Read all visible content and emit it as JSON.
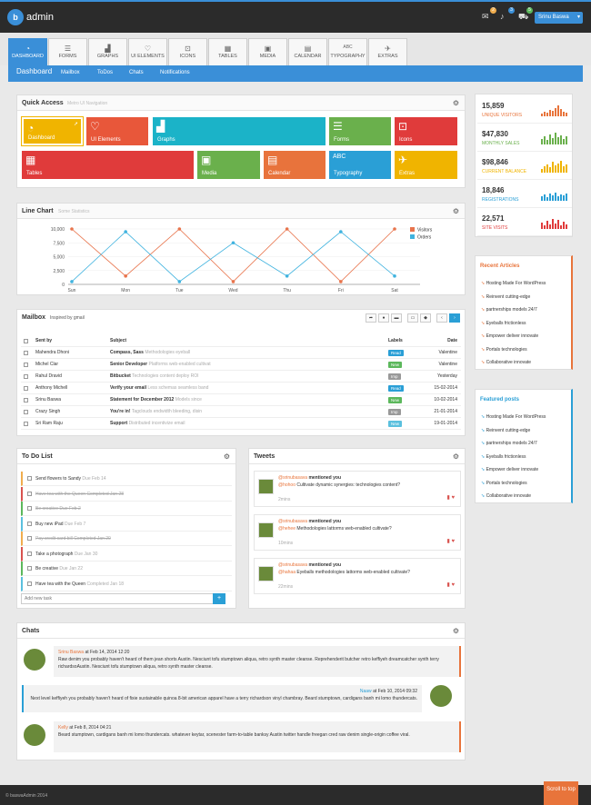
{
  "header": {
    "app_name": "admin",
    "user_name": "Srinu Baswa",
    "badges": [
      "2",
      "3",
      "5"
    ]
  },
  "nav_tabs": [
    {
      "label": "DASHBOARD",
      "icon": "dashboard-icon"
    },
    {
      "label": "FORMS",
      "icon": "forms-icon"
    },
    {
      "label": "GRAPHS",
      "icon": "graphs-icon"
    },
    {
      "label": "UI ELEMENTS",
      "icon": "ui-elements-icon"
    },
    {
      "label": "ICONS",
      "icon": "icons-icon"
    },
    {
      "label": "TABLES",
      "icon": "tables-icon"
    },
    {
      "label": "MEDIA",
      "icon": "media-icon"
    },
    {
      "label": "CALENDAR",
      "icon": "calendar-icon"
    },
    {
      "label": "TYPOGRAPHY",
      "icon": "typography-icon"
    },
    {
      "label": "EXTRAS",
      "icon": "extras-icon"
    }
  ],
  "subnav": {
    "current": "Dashboard",
    "links": [
      "Mailbox",
      "ToDos",
      "Chats",
      "Notifications"
    ]
  },
  "quick_access": {
    "title": "Quick Access",
    "subtitle": "Metro UI Navigation",
    "tiles": [
      "Dashboard",
      "UI Elements",
      "Graphs",
      "Forms",
      "Icons",
      "Tables",
      "Media",
      "Calendar",
      "Typography",
      "Extras"
    ]
  },
  "stats": [
    {
      "value": "15,859",
      "label": "UNIQUE VISITORS",
      "color": "#e8743b"
    },
    {
      "value": "$47,830",
      "label": "MONTHLY SALES",
      "color": "#6ab04c"
    },
    {
      "value": "$98,846",
      "label": "CURRENT BALANCE",
      "color": "#f0b400"
    },
    {
      "value": "18,846",
      "label": "REGISTRATIONS",
      "color": "#2a9fd6"
    },
    {
      "value": "22,571",
      "label": "SITE VISITS",
      "color": "#e03b3b"
    }
  ],
  "chart_data": {
    "type": "line",
    "title": "Line Chart",
    "subtitle": "Some Statistics",
    "categories": [
      "Sun",
      "Mon",
      "Tue",
      "Wed",
      "Thu",
      "Fri",
      "Sat"
    ],
    "series": [
      {
        "name": "Visitors",
        "color": "#e8744c",
        "values": [
          10000,
          1500,
          10000,
          500,
          10000,
          500,
          10000
        ]
      },
      {
        "name": "Orders",
        "color": "#40b3df",
        "values": [
          500,
          9500,
          500,
          7500,
          1500,
          9500,
          1500
        ]
      }
    ],
    "ylim": [
      0,
      10000
    ],
    "yticks": [
      "10,000",
      "7,500",
      "5,000",
      "2,500",
      "0"
    ]
  },
  "recent_articles": {
    "title": "Recent Articles",
    "items": [
      "Hosting Made For WordPress",
      "Reinvent cutting-edge",
      "partnerships models 24/7",
      "Eyeballs frictionless",
      "Empower deliver innovate",
      "Portals technologies",
      "Collaborative innovate"
    ]
  },
  "featured_posts": {
    "title": "Featured posts",
    "items": [
      "Hosting Made For WordPress",
      "Reinvent cutting-edge",
      "partnerships models 24/7",
      "Eyeballs frictionless",
      "Empower deliver innovate",
      "Portals technologies",
      "Collaborative innovate"
    ]
  },
  "mailbox": {
    "title": "Mailbox",
    "subtitle": "Inspired by gmail",
    "headers": {
      "sent_by": "Sent by",
      "subject": "Subject",
      "labels": "Labels",
      "date": "Date"
    },
    "rows": [
      {
        "from": "Mahendra Dhoni",
        "subject": "Compass, Sass",
        "preview": "Methodologies eyeball",
        "label": "Read",
        "label_color": "#2a9fd6",
        "date": "Valentine"
      },
      {
        "from": "Michel Clar",
        "subject": "Senior Developer",
        "preview": "Platforms web-enabled cultivat",
        "label": "New",
        "label_color": "#5cb85c",
        "date": "Valentine"
      },
      {
        "from": "Rahul Dravid",
        "subject": "Bitbucket",
        "preview": "Technologies content deploy ROI",
        "label": "Imp",
        "label_color": "#999999",
        "date": "Yesterday"
      },
      {
        "from": "Anthony Michell",
        "subject": "Verify your email",
        "preview": "Less schemas seamless band",
        "label": "Read",
        "label_color": "#2a9fd6",
        "date": "15-02-2014"
      },
      {
        "from": "Srinu Baswa",
        "subject": "Statement for December 2012",
        "preview": "Models since",
        "label": "New",
        "label_color": "#5cb85c",
        "date": "10-02-2014"
      },
      {
        "from": "Crazy Singh",
        "subject": "You're in!",
        "preview": "Tagclouds endwidth bleeding, disin",
        "label": "Imp",
        "label_color": "#999999",
        "date": "21-01-2014"
      },
      {
        "from": "Sri Ram Raju",
        "subject": "Support",
        "preview": "Distributed incentivize email",
        "label": "New",
        "label_color": "#5bc0de",
        "date": "19-01-2014"
      }
    ]
  },
  "todo": {
    "title": "To Do List",
    "placeholder": "Add new task",
    "items": [
      {
        "text": "Send flowers to Sandy",
        "meta": "Due Feb 14",
        "done": false,
        "color": "#f0ad4e"
      },
      {
        "text": "Have tea with the Queen",
        "meta": "Completed Jan 28",
        "done": true,
        "color": "#d9534f"
      },
      {
        "text": "Be creative",
        "meta": "Due Feb 2",
        "done": true,
        "color": "#5cb85c"
      },
      {
        "text": "Buy new iPad",
        "meta": "Due Feb 7",
        "done": false,
        "color": "#5bc0de"
      },
      {
        "text": "Pay credit card bill",
        "meta": "Completed Jan 20",
        "done": true,
        "color": "#f0ad4e"
      },
      {
        "text": "Take a photograph",
        "meta": "Due Jan 30",
        "done": false,
        "color": "#d9534f"
      },
      {
        "text": "Be creative",
        "meta": "Due Jan 22",
        "done": false,
        "color": "#5cb85c"
      },
      {
        "text": "Have tea with the Queen",
        "meta": "Completed Jan 18",
        "done": false,
        "color": "#5bc0de"
      }
    ]
  },
  "tweets": {
    "title": "Tweets",
    "items": [
      {
        "user": "@srinubasava",
        "action": "mentioned you",
        "mention": "@hohoo",
        "text": "Cultivate dynamic synergies: technologies content?",
        "time": "2mins"
      },
      {
        "user": "@srinubasava",
        "action": "mentioned you",
        "mention": "@hehee",
        "text": "Methodologies lattorms web-enabled cultivate?",
        "time": "10mins"
      },
      {
        "user": "@srinubasava",
        "action": "mentioned you",
        "mention": "@hahaa",
        "text": "Eyeballs methodologies lattorms web-enabled cultivate?",
        "time": "22mins"
      }
    ]
  },
  "chats": {
    "title": "Chats",
    "items": [
      {
        "name": "Srinu Baswa",
        "time": "at Feb 14, 2014 12:20",
        "text": "Raw denim you probably haven't heard of them jean shorts Austin. Nesciunt tofu stumptown aliqua, retro synth master cleanse. Reprehenderit butcher retro keffiyeh dreamcatcher synth terry richardsoAustin. Nesciunt tofu stumptown aliqua, retro synth master cleanse."
      },
      {
        "name": "Naaw",
        "time": "at Feb 10, 2014 09:32",
        "text": "Next level keffiyeh you probably haven't heard of fixie sustainable quinoa 8-bit american apparel have a terry richardson vinyl chambray. Beard stumptown, cardigans banh mi lomo thundercats."
      },
      {
        "name": "Kelly",
        "time": "at Feb 8, 2014 04:21",
        "text": "Beard stumptown, cardigans banh mi lomo thundercats. whatever keytar, scenester farm-to-table banksy Austin twitter handle freegan cred raw denim single-origin coffee viral."
      }
    ]
  },
  "footer": {
    "copyright": "© baswaAdmin 2014",
    "scroll_top": "Scroll to top"
  }
}
